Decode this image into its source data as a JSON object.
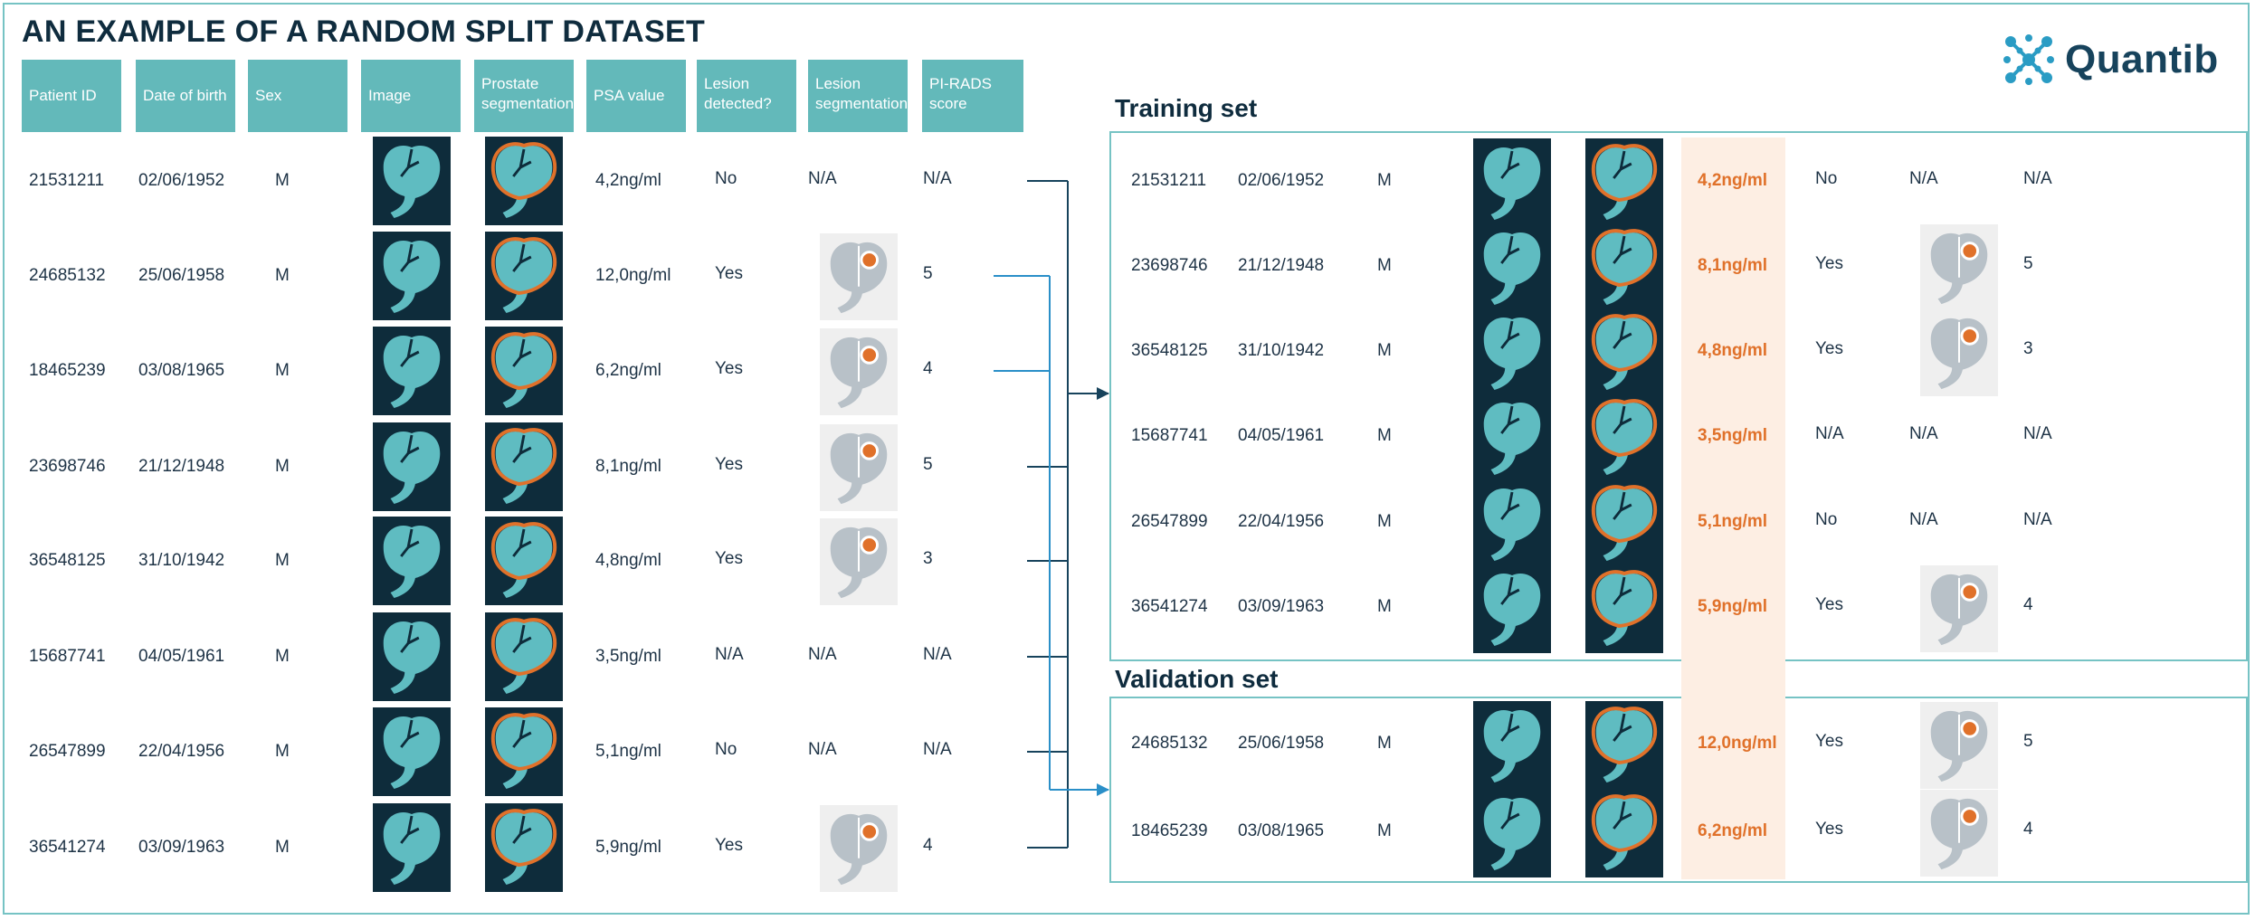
{
  "title": "AN EXAMPLE OF A RANDOM SPLIT DATASET",
  "logo": {
    "text": "Quantib",
    "icon": "quantib-molecule-icon"
  },
  "columns": [
    "Patient ID",
    "Date of birth",
    "Sex",
    "Image",
    "Prostate segmentation",
    "PSA value",
    "Lesion detected?",
    "Lesion segmentation",
    "PI-RADS score"
  ],
  "source_rows": [
    {
      "id": "21531211",
      "dob": "02/06/1952",
      "sex": "M",
      "psa": "4,2ng/ml",
      "lesion": "No",
      "lesion_seg": "N/A",
      "pirads": "N/A",
      "split": "training"
    },
    {
      "id": "24685132",
      "dob": "25/06/1958",
      "sex": "M",
      "psa": "12,0ng/ml",
      "lesion": "Yes",
      "lesion_seg": "",
      "pirads": "5",
      "split": "validation"
    },
    {
      "id": "18465239",
      "dob": "03/08/1965",
      "sex": "M",
      "psa": "6,2ng/ml",
      "lesion": "Yes",
      "lesion_seg": "",
      "pirads": "4",
      "split": "validation"
    },
    {
      "id": "23698746",
      "dob": "21/12/1948",
      "sex": "M",
      "psa": "8,1ng/ml",
      "lesion": "Yes",
      "lesion_seg": "",
      "pirads": "5",
      "split": "training"
    },
    {
      "id": "36548125",
      "dob": "31/10/1942",
      "sex": "M",
      "psa": "4,8ng/ml",
      "lesion": "Yes",
      "lesion_seg": "",
      "pirads": "3",
      "split": "training"
    },
    {
      "id": "15687741",
      "dob": "04/05/1961",
      "sex": "M",
      "psa": "3,5ng/ml",
      "lesion": "N/A",
      "lesion_seg": "N/A",
      "pirads": "N/A",
      "split": "training"
    },
    {
      "id": "26547899",
      "dob": "22/04/1956",
      "sex": "M",
      "psa": "5,1ng/ml",
      "lesion": "No",
      "lesion_seg": "N/A",
      "pirads": "N/A",
      "split": "training"
    },
    {
      "id": "36541274",
      "dob": "03/09/1963",
      "sex": "M",
      "psa": "5,9ng/ml",
      "lesion": "Yes",
      "lesion_seg": "",
      "pirads": "4",
      "split": "training"
    }
  ],
  "training": {
    "title": "Training set",
    "rows": [
      {
        "id": "21531211",
        "dob": "02/06/1952",
        "sex": "M",
        "psa": "4,2ng/ml",
        "lesion": "No",
        "lesion_seg": "N/A",
        "pirads": "N/A"
      },
      {
        "id": "23698746",
        "dob": "21/12/1948",
        "sex": "M",
        "psa": "8,1ng/ml",
        "lesion": "Yes",
        "lesion_seg": "",
        "pirads": "5"
      },
      {
        "id": "36548125",
        "dob": "31/10/1942",
        "sex": "M",
        "psa": "4,8ng/ml",
        "lesion": "Yes",
        "lesion_seg": "",
        "pirads": "3"
      },
      {
        "id": "15687741",
        "dob": "04/05/1961",
        "sex": "M",
        "psa": "3,5ng/ml",
        "lesion": "N/A",
        "lesion_seg": "N/A",
        "pirads": "N/A"
      },
      {
        "id": "26547899",
        "dob": "22/04/1956",
        "sex": "M",
        "psa": "5,1ng/ml",
        "lesion": "No",
        "lesion_seg": "N/A",
        "pirads": "N/A"
      },
      {
        "id": "36541274",
        "dob": "03/09/1963",
        "sex": "M",
        "psa": "5,9ng/ml",
        "lesion": "Yes",
        "lesion_seg": "",
        "pirads": "4"
      }
    ]
  },
  "validation": {
    "title": "Validation set",
    "rows": [
      {
        "id": "24685132",
        "dob": "25/06/1958",
        "sex": "M",
        "psa": "12,0ng/ml",
        "lesion": "Yes",
        "lesion_seg": "",
        "pirads": "5"
      },
      {
        "id": "18465239",
        "dob": "03/08/1965",
        "sex": "M",
        "psa": "6,2ng/ml",
        "lesion": "Yes",
        "lesion_seg": "",
        "pirads": "4"
      }
    ]
  },
  "colors": {
    "header_bg": "#63b9ba",
    "tile_bg": "#0e2c3b",
    "organ": "#5fbcc1",
    "segmentation": "#e0712a",
    "psa_highlight": "#fdeee3",
    "training_line": "#17435c",
    "validation_line": "#2a8fc8"
  }
}
